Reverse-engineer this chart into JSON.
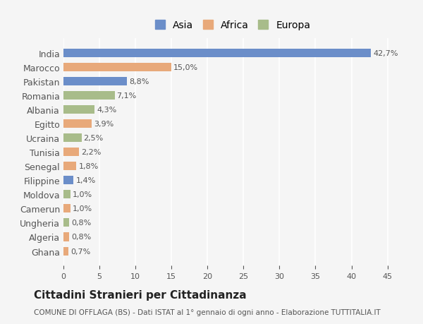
{
  "countries": [
    "India",
    "Marocco",
    "Pakistan",
    "Romania",
    "Albania",
    "Egitto",
    "Ucraina",
    "Tunisia",
    "Senegal",
    "Filippine",
    "Moldova",
    "Camerun",
    "Ungheria",
    "Algeria",
    "Ghana"
  ],
  "values": [
    42.7,
    15.0,
    8.8,
    7.1,
    4.3,
    3.9,
    2.5,
    2.2,
    1.8,
    1.4,
    1.0,
    1.0,
    0.8,
    0.8,
    0.7
  ],
  "labels": [
    "42,7%",
    "15,0%",
    "8,8%",
    "7,1%",
    "4,3%",
    "3,9%",
    "2,5%",
    "2,2%",
    "1,8%",
    "1,4%",
    "1,0%",
    "1,0%",
    "0,8%",
    "0,8%",
    "0,7%"
  ],
  "continent": [
    "Asia",
    "Africa",
    "Asia",
    "Europa",
    "Europa",
    "Africa",
    "Europa",
    "Africa",
    "Africa",
    "Asia",
    "Europa",
    "Africa",
    "Europa",
    "Africa",
    "Africa"
  ],
  "colors": {
    "Asia": "#6b8ec9",
    "Africa": "#e8a97a",
    "Europa": "#a8bc8a"
  },
  "title": "Cittadini Stranieri per Cittadinanza",
  "subtitle": "COMUNE DI OFFLAGA (BS) - Dati ISTAT al 1° gennaio di ogni anno - Elaborazione TUTTITALIA.IT",
  "xlim": [
    0,
    47
  ],
  "xticks": [
    0,
    5,
    10,
    15,
    20,
    25,
    30,
    35,
    40,
    45
  ],
  "background_color": "#f5f5f5",
  "grid_color": "#ffffff",
  "bar_height": 0.6,
  "legend_order": [
    "Asia",
    "Africa",
    "Europa"
  ]
}
